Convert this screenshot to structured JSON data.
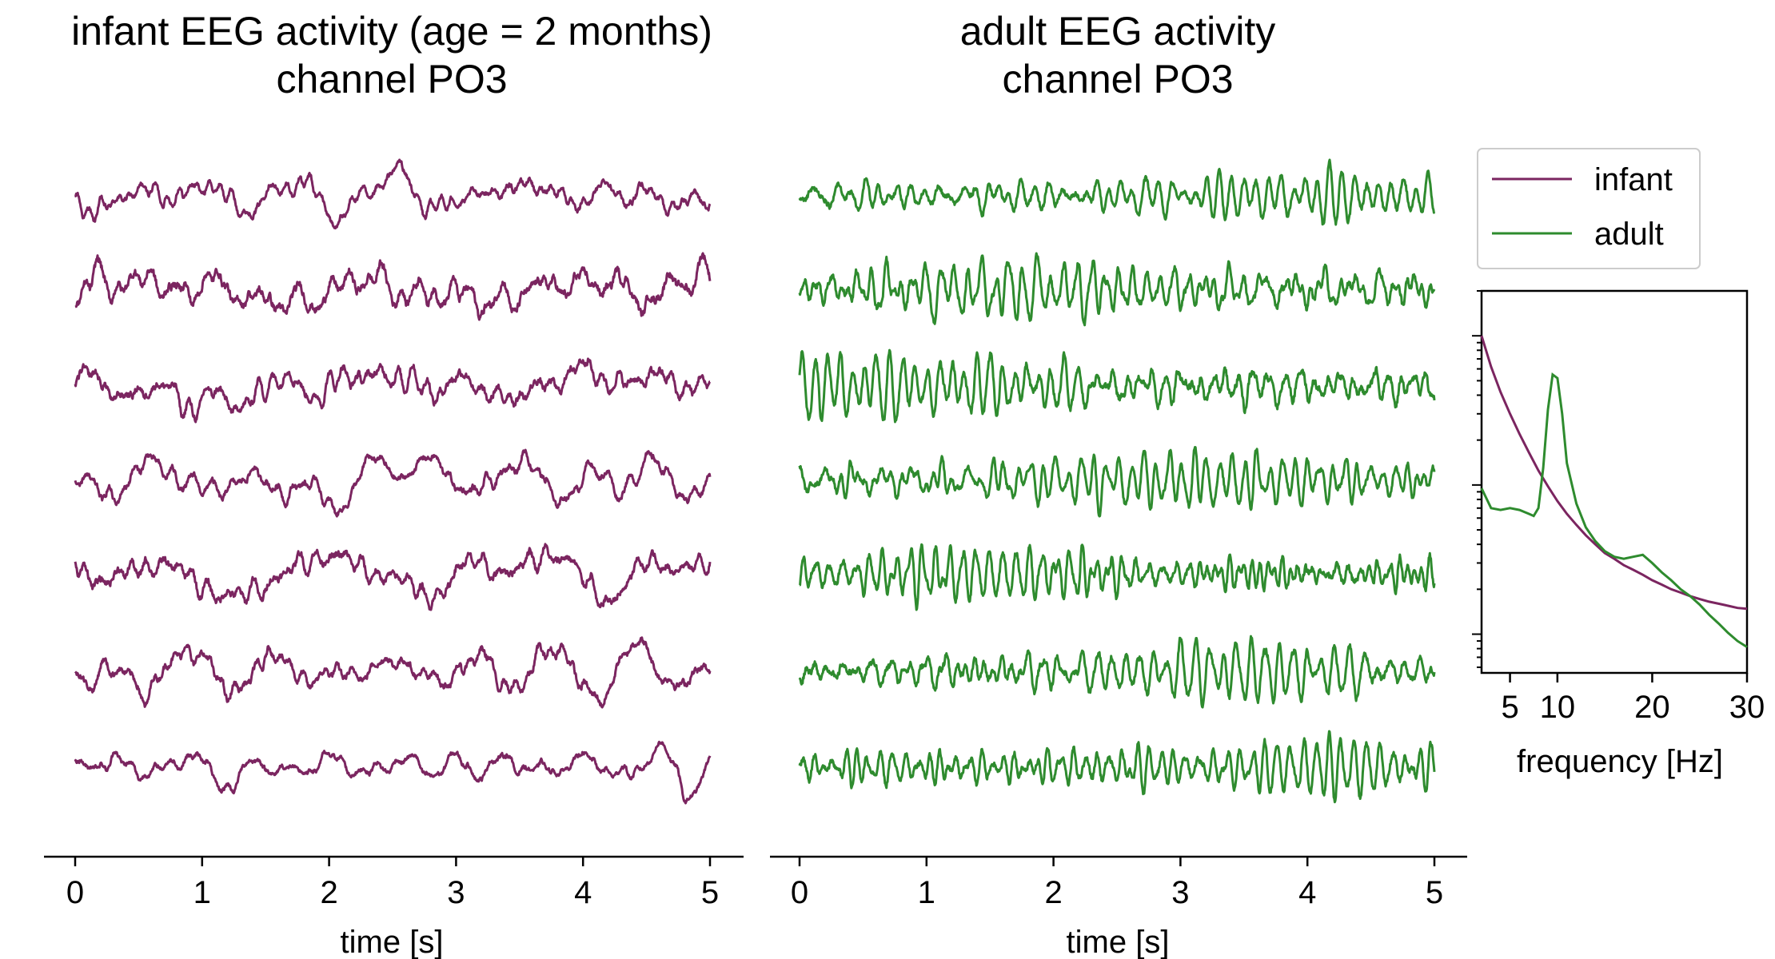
{
  "colors": {
    "infant": "#7b2560",
    "adult": "#2e8b2e"
  },
  "chart_data": [
    {
      "type": "line",
      "title_lines": [
        "infant EEG activity (age = 2 months)",
        "channel PO3"
      ],
      "xlabel": "time [s]",
      "xlim": [
        0,
        5
      ],
      "xticks": [
        0,
        1,
        2,
        3,
        4,
        5
      ],
      "series": [
        {
          "name": "infant",
          "traces": 7,
          "duration_s": 5
        }
      ]
    },
    {
      "type": "line",
      "title_lines": [
        "adult EEG activity",
        "channel PO3"
      ],
      "xlabel": "time [s]",
      "xlim": [
        0,
        5
      ],
      "xticks": [
        0,
        1,
        2,
        3,
        4,
        5
      ],
      "series": [
        {
          "name": "adult",
          "traces": 7,
          "duration_s": 5
        }
      ]
    },
    {
      "type": "line",
      "xlabel": "frequency [Hz]",
      "xlim": [
        2,
        30
      ],
      "xticks": [
        5,
        10,
        20,
        30
      ],
      "yscale": "log",
      "legend": {
        "placement": "top",
        "entries": [
          "infant",
          "adult"
        ]
      },
      "series": [
        {
          "name": "infant",
          "x": [
            2,
            3,
            4,
            5,
            6,
            7,
            8,
            9,
            10,
            11,
            12,
            13,
            14,
            15,
            16,
            17,
            18,
            19,
            20,
            21,
            22,
            23,
            24,
            25,
            26,
            27,
            28,
            29,
            30
          ],
          "y": [
            1.0,
            0.62,
            0.42,
            0.3,
            0.22,
            0.165,
            0.125,
            0.098,
            0.078,
            0.064,
            0.054,
            0.046,
            0.04,
            0.035,
            0.032,
            0.029,
            0.027,
            0.025,
            0.023,
            0.0215,
            0.02,
            0.019,
            0.018,
            0.0172,
            0.0165,
            0.016,
            0.0155,
            0.015,
            0.0148
          ]
        },
        {
          "name": "adult",
          "x": [
            2,
            3,
            4,
            5,
            6,
            7,
            7.5,
            8,
            8.5,
            9,
            9.5,
            10,
            10.5,
            11,
            12,
            13,
            14,
            15,
            16,
            17,
            18,
            19,
            20,
            21,
            22,
            23,
            24,
            25,
            26,
            27,
            28,
            29,
            30
          ],
          "y": [
            0.095,
            0.07,
            0.068,
            0.07,
            0.068,
            0.064,
            0.062,
            0.07,
            0.13,
            0.32,
            0.55,
            0.52,
            0.3,
            0.14,
            0.075,
            0.052,
            0.042,
            0.036,
            0.033,
            0.032,
            0.033,
            0.034,
            0.03,
            0.026,
            0.023,
            0.02,
            0.018,
            0.0158,
            0.0135,
            0.0118,
            0.0102,
            0.009,
            0.0082
          ]
        }
      ]
    }
  ]
}
